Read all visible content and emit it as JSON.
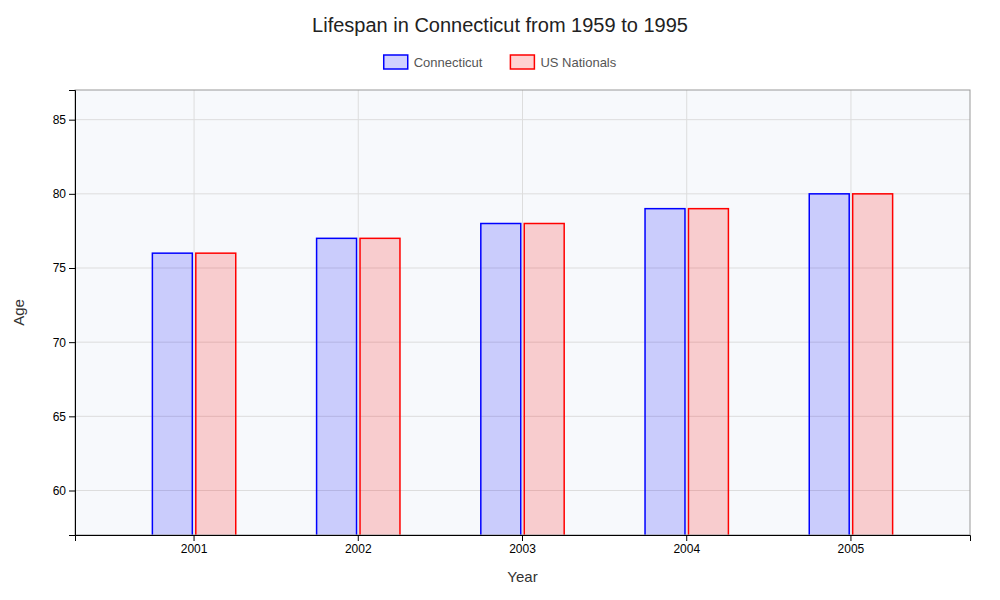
{
  "chart_data": {
    "type": "bar",
    "title": "Lifespan in Connecticut from 1959 to 1995",
    "xlabel": "Year",
    "ylabel": "Age",
    "categories": [
      "2001",
      "2002",
      "2003",
      "2004",
      "2005"
    ],
    "series": [
      {
        "name": "Connecticut",
        "color": "#0000ff",
        "values": [
          76,
          77,
          78,
          79,
          80
        ]
      },
      {
        "name": "US Nationals",
        "color": "#ff0000",
        "values": [
          76,
          77,
          78,
          79,
          80
        ]
      }
    ],
    "ylim": [
      57,
      87
    ],
    "yticks": [
      60,
      65,
      70,
      75,
      80,
      85
    ],
    "grid": true,
    "legend": "top"
  }
}
